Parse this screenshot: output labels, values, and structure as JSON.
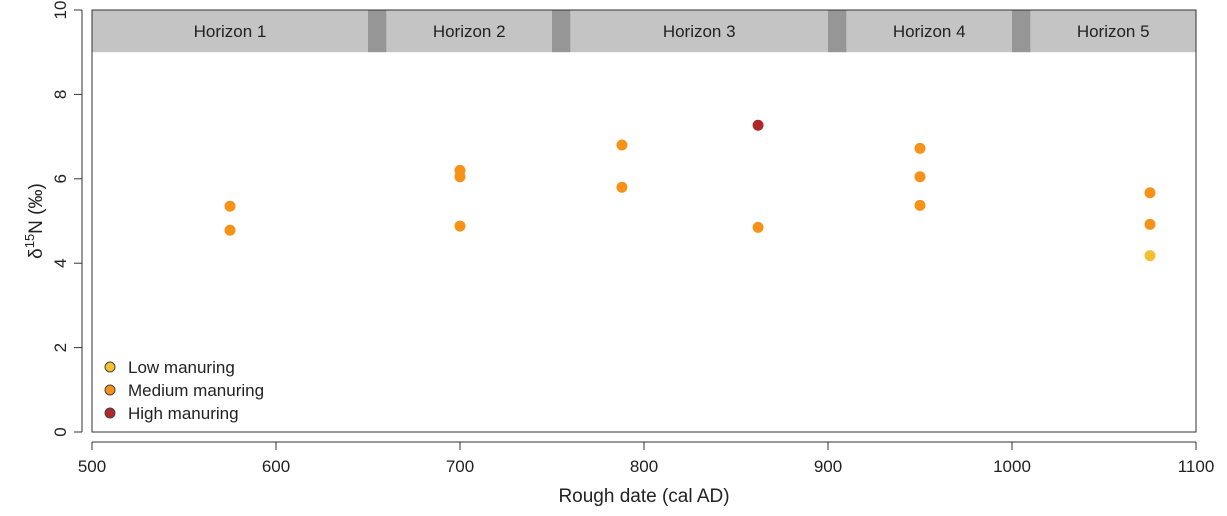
{
  "chart_data": {
    "type": "scatter",
    "title": "",
    "xlabel": "Rough date (cal AD)",
    "ylabel": {
      "main": "δ",
      "sup": "15",
      "rest": "N (‰)"
    },
    "xlim": [
      500,
      1100
    ],
    "ylim": [
      0,
      10
    ],
    "x_ticks": [
      500,
      600,
      700,
      800,
      900,
      1000,
      1100
    ],
    "y_ticks": [
      0,
      2,
      4,
      6,
      8,
      10
    ],
    "grid": false,
    "legend": {
      "position": "bottom-left"
    },
    "horizon_band": {
      "y_range": [
        9,
        10
      ],
      "color": "#c4c4c4",
      "gap_color": "#969696",
      "horizons": [
        {
          "label": "Horizon 1",
          "start": 500,
          "end": 650
        },
        {
          "label": "Horizon 2",
          "start": 660,
          "end": 750
        },
        {
          "label": "Horizon 3",
          "start": 760,
          "end": 900
        },
        {
          "label": "Horizon 4",
          "start": 910,
          "end": 1000
        },
        {
          "label": "Horizon 5",
          "start": 1010,
          "end": 1100
        }
      ],
      "gaps": [
        [
          650,
          660
        ],
        [
          750,
          760
        ],
        [
          900,
          910
        ],
        [
          1000,
          1010
        ]
      ]
    },
    "series": [
      {
        "name": "Low manuring",
        "color": "#f5c030",
        "points": [
          {
            "x": 1075,
            "y": 4.18
          }
        ]
      },
      {
        "name": "Medium manuring",
        "color": "#f79219",
        "points": [
          {
            "x": 575,
            "y": 5.35
          },
          {
            "x": 575,
            "y": 4.78
          },
          {
            "x": 700,
            "y": 6.2
          },
          {
            "x": 700,
            "y": 6.05
          },
          {
            "x": 700,
            "y": 4.88
          },
          {
            "x": 788,
            "y": 6.8
          },
          {
            "x": 788,
            "y": 5.8
          },
          {
            "x": 862,
            "y": 4.85
          },
          {
            "x": 950,
            "y": 6.72
          },
          {
            "x": 950,
            "y": 6.05
          },
          {
            "x": 950,
            "y": 5.37
          },
          {
            "x": 1075,
            "y": 5.67
          },
          {
            "x": 1075,
            "y": 4.92
          }
        ]
      },
      {
        "name": "High manuring",
        "color": "#b0272a",
        "points": [
          {
            "x": 862,
            "y": 7.27
          }
        ]
      }
    ]
  }
}
